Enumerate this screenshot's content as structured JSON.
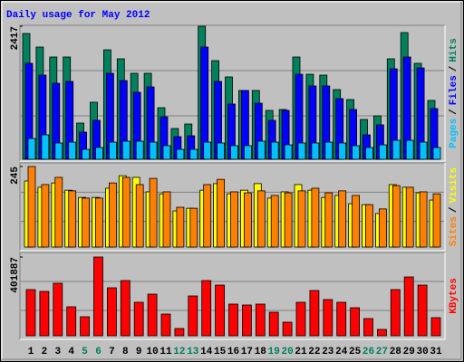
{
  "title": "Daily usage for May 2012",
  "categories": [
    "1",
    "2",
    "3",
    "4",
    "5",
    "6",
    "7",
    "8",
    "9",
    "10",
    "11",
    "12",
    "13",
    "14",
    "15",
    "16",
    "17",
    "18",
    "19",
    "20",
    "21",
    "22",
    "23",
    "24",
    "25",
    "26",
    "27",
    "28",
    "29",
    "30",
    "31"
  ],
  "label_colors": [
    "#000000",
    "#000000",
    "#000000",
    "#000000",
    "#007f5f",
    "#007f5f",
    "#000000",
    "#000000",
    "#000000",
    "#000000",
    "#000000",
    "#007f5f",
    "#007f5f",
    "#000000",
    "#000000",
    "#000000",
    "#000000",
    "#000000",
    "#007f5f",
    "#007f5f",
    "#000000",
    "#000000",
    "#000000",
    "#000000",
    "#000000",
    "#007f5f",
    "#007f5f",
    "#000000",
    "#000000",
    "#000000",
    "#000000"
  ],
  "legend_separator": "/",
  "chart_data": [
    {
      "type": "bar",
      "ylim": [
        0,
        2417
      ],
      "yticks": [
        2417
      ],
      "series": [
        {
          "name": "Pages",
          "color": "#00c0ff",
          "values": [
            378,
            444,
            296,
            312,
            181,
            214,
            312,
            329,
            329,
            312,
            247,
            181,
            181,
            312,
            296,
            247,
            247,
            329,
            312,
            263,
            296,
            296,
            312,
            296,
            247,
            214,
            263,
            345,
            345,
            312,
            214
          ]
        },
        {
          "name": "Files",
          "color": "#0000ff",
          "values": [
            1743,
            1529,
            1381,
            1414,
            493,
            707,
            1562,
            1430,
            1217,
            1315,
            773,
            411,
            427,
            2039,
            1414,
            1003,
            1250,
            1019,
            707,
            888,
            1545,
            1332,
            1332,
            1101,
            904,
            444,
            625,
            1644,
            1858,
            1660,
            921
          ]
        },
        {
          "name": "Hits",
          "color": "#00805c",
          "values": [
            2285,
            2039,
            1858,
            1858,
            658,
            1036,
            1989,
            1825,
            1562,
            1562,
            937,
            559,
            641,
            2417,
            1792,
            1496,
            1250,
            1250,
            888,
            904,
            1858,
            1545,
            1529,
            1266,
            1085,
            723,
            789,
            1825,
            2302,
            1743,
            1069
          ]
        }
      ]
    },
    {
      "type": "bar",
      "ylim": [
        0,
        245
      ],
      "yticks": [
        245
      ],
      "series": [
        {
          "name": "Sites",
          "color": "#ff8000",
          "values": [
            245,
            190,
            212,
            171,
            149,
            149,
            195,
            212,
            190,
            209,
            168,
            121,
            118,
            190,
            206,
            168,
            165,
            171,
            157,
            165,
            171,
            179,
            165,
            171,
            157,
            129,
            116,
            187,
            182,
            168,
            162
          ]
        },
        {
          "name": "Visits",
          "color": "#ffff00",
          "values": [
            201,
            182,
            195,
            173,
            151,
            151,
            179,
            217,
            212,
            168,
            162,
            110,
            118,
            173,
            193,
            162,
            173,
            193,
            149,
            168,
            190,
            173,
            151,
            157,
            132,
            129,
            102,
            190,
            182,
            165,
            143
          ]
        }
      ]
    },
    {
      "type": "bar",
      "ylim": [
        0,
        401887
      ],
      "yticks": [
        401887
      ],
      "series": [
        {
          "name": "KBytes",
          "color": "#ff0000",
          "values": [
            235569,
            226331,
            267902,
            147808,
            97000,
            401887,
            244807,
            281759,
            170903,
            212474,
            110856,
            36952,
            203236,
            281759,
            258664,
            161665,
            157046,
            161665,
            120094,
            69285,
            170903,
            230950,
            184760,
            170903,
            143189,
            87761,
            32333,
            235569,
            300235,
            258664,
            92380
          ]
        }
      ]
    }
  ]
}
